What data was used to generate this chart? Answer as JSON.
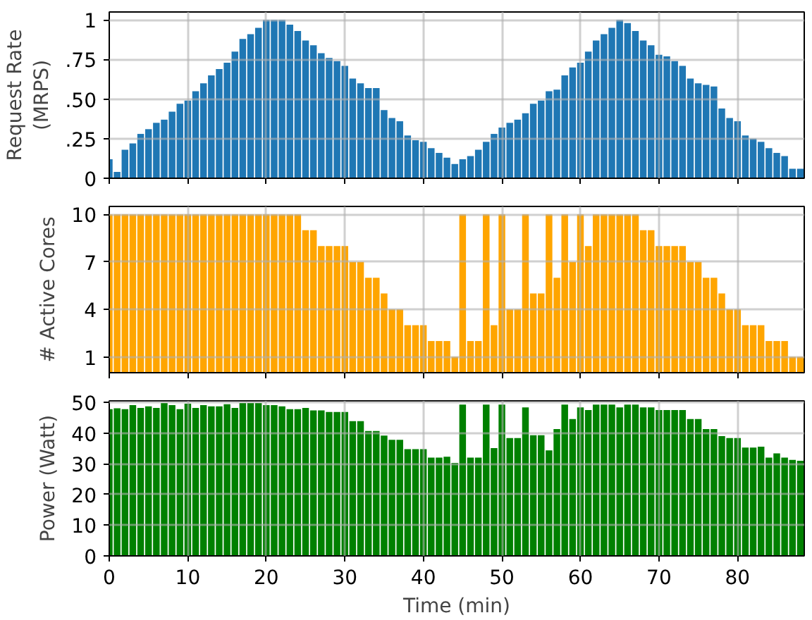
{
  "chart_data": [
    {
      "type": "bar",
      "ylabel": "Request Rate\n(MRPS)",
      "x": [
        0,
        1,
        2,
        3,
        4,
        5,
        6,
        7,
        8,
        9,
        10,
        11,
        12,
        13,
        14,
        15,
        16,
        17,
        18,
        19,
        20,
        21,
        22,
        23,
        24,
        25,
        26,
        27,
        28,
        29,
        30,
        31,
        32,
        33,
        34,
        35,
        36,
        37,
        38,
        39,
        40,
        41,
        42,
        43,
        44,
        45,
        46,
        47,
        48,
        49,
        50,
        51,
        52,
        53,
        54,
        55,
        56,
        57,
        58,
        59,
        60,
        61,
        62,
        63,
        64,
        65,
        66,
        67,
        68,
        69,
        70,
        71,
        72,
        73,
        74,
        75,
        76,
        77,
        78,
        79,
        80,
        81,
        82,
        83,
        84,
        85,
        86,
        87,
        88
      ],
      "series": [
        {
          "color": "#1f77b4",
          "values": [
            0.12,
            0.04,
            0.18,
            0.22,
            0.28,
            0.31,
            0.35,
            0.37,
            0.42,
            0.47,
            0.49,
            0.55,
            0.6,
            0.65,
            0.69,
            0.73,
            0.8,
            0.88,
            0.91,
            0.95,
            1.0,
            1.0,
            1.0,
            0.97,
            0.93,
            0.87,
            0.84,
            0.79,
            0.76,
            0.74,
            0.71,
            0.63,
            0.6,
            0.57,
            0.57,
            0.43,
            0.38,
            0.36,
            0.27,
            0.24,
            0.23,
            0.19,
            0.16,
            0.13,
            0.09,
            0.12,
            0.14,
            0.18,
            0.23,
            0.28,
            0.32,
            0.35,
            0.37,
            0.41,
            0.47,
            0.49,
            0.55,
            0.56,
            0.65,
            0.7,
            0.73,
            0.8,
            0.87,
            0.91,
            0.95,
            1.0,
            0.98,
            0.93,
            0.87,
            0.84,
            0.78,
            0.77,
            0.74,
            0.71,
            0.63,
            0.6,
            0.59,
            0.58,
            0.44,
            0.38,
            0.36,
            0.27,
            0.25,
            0.23,
            0.19,
            0.16,
            0.14,
            0.06,
            0.06
          ]
        }
      ],
      "xlim": [
        0,
        88.5
      ],
      "xticks": [
        0,
        10,
        20,
        30,
        40,
        50,
        60,
        70,
        80
      ],
      "ylim": [
        0,
        1.05
      ],
      "yticks": [
        {
          "value": 0,
          "label": "0"
        },
        {
          "value": 0.25,
          "label": ".25"
        },
        {
          "value": 0.5,
          "label": ".50"
        },
        {
          "value": 0.75,
          "label": ".75"
        },
        {
          "value": 1,
          "label": "1"
        }
      ],
      "grid": true,
      "tick_labels": "y"
    },
    {
      "type": "bar",
      "ylabel": "# Active Cores",
      "x": [
        0,
        1,
        2,
        3,
        4,
        5,
        6,
        7,
        8,
        9,
        10,
        11,
        12,
        13,
        14,
        15,
        16,
        17,
        18,
        19,
        20,
        21,
        22,
        23,
        24,
        25,
        26,
        27,
        28,
        29,
        30,
        31,
        32,
        33,
        34,
        35,
        36,
        37,
        38,
        39,
        40,
        41,
        42,
        43,
        44,
        45,
        46,
        47,
        48,
        49,
        50,
        51,
        52,
        53,
        54,
        55,
        56,
        57,
        58,
        59,
        60,
        61,
        62,
        63,
        64,
        65,
        66,
        67,
        68,
        69,
        70,
        71,
        72,
        73,
        74,
        75,
        76,
        77,
        78,
        79,
        80,
        81,
        82,
        83,
        84,
        85,
        86,
        87,
        88
      ],
      "series": [
        {
          "color": "#ffa500",
          "values": [
            10,
            10,
            10,
            10,
            10,
            10,
            10,
            10,
            10,
            10,
            10,
            10,
            10,
            10,
            10,
            10,
            10,
            10,
            10,
            10,
            10,
            10,
            10,
            10,
            10,
            9,
            9,
            8,
            8,
            8,
            8,
            7,
            7,
            6,
            6,
            5,
            4,
            4,
            3,
            3,
            3,
            2,
            2,
            2,
            1,
            10,
            2,
            2,
            10,
            3,
            10,
            4,
            4,
            10,
            5,
            5,
            10,
            6,
            10,
            7,
            10,
            8,
            10,
            10,
            10,
            10,
            10,
            10,
            9,
            9,
            8,
            8,
            8,
            8,
            7,
            7,
            6,
            6,
            5,
            4,
            4,
            3,
            3,
            3,
            2,
            2,
            2,
            1,
            1
          ]
        }
      ],
      "xlim": [
        0,
        88.5
      ],
      "xticks": [
        0,
        10,
        20,
        30,
        40,
        50,
        60,
        70,
        80
      ],
      "ylim": [
        0,
        10.5
      ],
      "yticks": [
        1,
        4,
        7,
        10
      ],
      "grid": true,
      "tick_labels": "y"
    },
    {
      "type": "bar",
      "xlabel": "Time (min)",
      "ylabel": "Power (Watt)",
      "x": [
        0,
        1,
        2,
        3,
        4,
        5,
        6,
        7,
        8,
        9,
        10,
        11,
        12,
        13,
        14,
        15,
        16,
        17,
        18,
        19,
        20,
        21,
        22,
        23,
        24,
        25,
        26,
        27,
        28,
        29,
        30,
        31,
        32,
        33,
        34,
        35,
        36,
        37,
        38,
        39,
        40,
        41,
        42,
        43,
        44,
        45,
        46,
        47,
        48,
        49,
        50,
        51,
        52,
        53,
        54,
        55,
        56,
        57,
        58,
        59,
        60,
        61,
        62,
        63,
        64,
        65,
        66,
        67,
        68,
        69,
        70,
        71,
        72,
        73,
        74,
        75,
        76,
        77,
        78,
        79,
        80,
        81,
        82,
        83,
        84,
        85,
        86,
        87,
        88
      ],
      "series": [
        {
          "color": "#008000",
          "values": [
            47.8,
            48.1,
            47.8,
            49.1,
            48.2,
            48.7,
            48.2,
            49.8,
            49.1,
            47.8,
            49.6,
            48.2,
            49.1,
            48.7,
            48.7,
            49.4,
            48.2,
            49.8,
            49.8,
            49.8,
            49.1,
            49.1,
            48.7,
            47.8,
            47.8,
            48.2,
            47.4,
            47.4,
            46.9,
            46.9,
            46.9,
            43.9,
            43.9,
            40.7,
            40.7,
            39.2,
            37.8,
            37.8,
            34.8,
            34.8,
            34.8,
            32,
            32,
            32.3,
            30.3,
            49.3,
            32,
            32,
            49.3,
            35.1,
            49.3,
            38.4,
            38.4,
            48.4,
            39.3,
            39.3,
            34.4,
            41.3,
            49.3,
            44.6,
            48.4,
            47.5,
            49.3,
            49.3,
            49.3,
            48.4,
            49.3,
            49.3,
            48.4,
            48.4,
            47.5,
            47.5,
            47.5,
            47.5,
            44.6,
            44.6,
            41.3,
            41.3,
            39,
            38.4,
            38.4,
            35.3,
            35.3,
            35.6,
            32,
            33.4,
            32,
            31.3,
            31
          ]
        }
      ],
      "xlim": [
        0,
        88.5
      ],
      "xticks": [
        0,
        10,
        20,
        30,
        40,
        50,
        60,
        70,
        80
      ],
      "ylim": [
        0,
        50.5
      ],
      "yticks": [
        0,
        10,
        20,
        30,
        40,
        50
      ],
      "grid": true
    }
  ]
}
